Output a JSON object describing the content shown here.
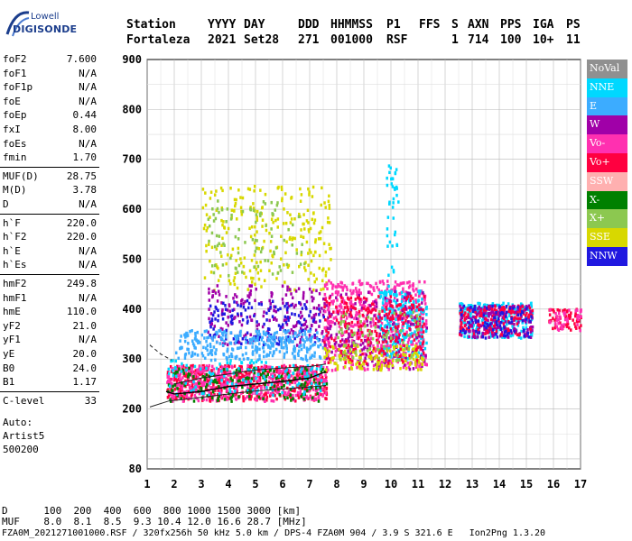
{
  "logo": {
    "brand": "Lowell",
    "product": "DIGISONDE"
  },
  "header": {
    "row1": [
      "Station",
      "YYYY",
      "DAY",
      "DDD",
      "HHMMSS",
      "P1",
      "FFS",
      "S",
      "AXN",
      "PPS",
      "IGA",
      "PS"
    ],
    "row2": [
      "Fortaleza",
      "2021",
      "Set28",
      "271",
      "001000",
      "RSF",
      "",
      "1",
      "714",
      "100",
      "10+",
      "11"
    ]
  },
  "params": {
    "group1": [
      {
        "k": "foF2",
        "v": "7.600"
      },
      {
        "k": "foF1",
        "v": "N/A"
      },
      {
        "k": "foF1p",
        "v": "N/A"
      },
      {
        "k": "foE",
        "v": "N/A"
      },
      {
        "k": "foEp",
        "v": "0.44"
      },
      {
        "k": "fxI",
        "v": "8.00"
      },
      {
        "k": "foEs",
        "v": "N/A"
      },
      {
        "k": "fmin",
        "v": "1.70"
      }
    ],
    "group2": [
      {
        "k": "MUF(D)",
        "v": "28.75"
      },
      {
        "k": "M(D)",
        "v": "3.78"
      },
      {
        "k": "D",
        "v": "N/A"
      }
    ],
    "group3": [
      {
        "k": "h`F",
        "v": "220.0"
      },
      {
        "k": "h`F2",
        "v": "220.0"
      },
      {
        "k": "h`E",
        "v": "N/A"
      },
      {
        "k": "h`Es",
        "v": "N/A"
      }
    ],
    "group4": [
      {
        "k": "hmF2",
        "v": "249.8"
      },
      {
        "k": "hmF1",
        "v": "N/A"
      },
      {
        "k": "hmE",
        "v": "110.0"
      },
      {
        "k": "yF2",
        "v": "21.0"
      },
      {
        "k": "yF1",
        "v": "N/A"
      },
      {
        "k": "yE",
        "v": "20.0"
      },
      {
        "k": "B0",
        "v": "24.0"
      },
      {
        "k": "B1",
        "v": "1.17"
      }
    ],
    "group5": [
      {
        "k": "C-level",
        "v": "33"
      }
    ],
    "auto": [
      "Auto:",
      "Artist5",
      "500200"
    ]
  },
  "legend": [
    {
      "label": "NoVal",
      "color": "#909090"
    },
    {
      "label": "NNE",
      "color": "#00d8ff"
    },
    {
      "label": "E",
      "color": "#3cacff"
    },
    {
      "label": "W",
      "color": "#a000a8"
    },
    {
      "label": "Vo-",
      "color": "#ff30b0"
    },
    {
      "label": "Vo+",
      "color": "#ff0040"
    },
    {
      "label": "SSW",
      "color": "#ffb0b0"
    },
    {
      "label": "X-",
      "color": "#008000"
    },
    {
      "label": "X+",
      "color": "#8cc850"
    },
    {
      "label": "SSE",
      "color": "#d8d800"
    },
    {
      "label": "NNW",
      "color": "#2018e0"
    }
  ],
  "footer": {
    "d_line": "D      100  200  400  600  800 1000 1500 3000 [km]",
    "muf_line": "MUF    8.0  8.1  8.5  9.3 10.4 12.0 16.6 28.7 [MHz]",
    "file_line": "FZA0M_2021271001000.RSF / 320fx256h 50 kHz 5.0 km / DPS-4 FZA0M 904 / 3.9 S 321.6 E   Ion2Png 1.3.20"
  },
  "chart_data": {
    "type": "scatter",
    "title": "",
    "xlabel": "",
    "ylabel": "",
    "xlim": [
      1,
      17
    ],
    "ylim": [
      80,
      900
    ],
    "x_ticks": [
      1,
      2,
      3,
      4,
      5,
      6,
      7,
      8,
      9,
      10,
      11,
      12,
      13,
      14,
      15,
      16,
      17
    ],
    "y_ticks": [
      80,
      200,
      300,
      400,
      500,
      600,
      700,
      800,
      900
    ],
    "grid": true,
    "legend_position": "right",
    "traces": {
      "o_trace": [
        [
          1.7,
          235
        ],
        [
          2.0,
          230
        ],
        [
          3.0,
          235
        ],
        [
          4.0,
          245
        ],
        [
          5.0,
          250
        ],
        [
          6.0,
          255
        ],
        [
          7.0,
          262
        ],
        [
          7.6,
          275
        ]
      ],
      "x_trace_upper": [
        [
          2.0,
          250
        ],
        [
          3.0,
          262
        ],
        [
          4.0,
          270
        ],
        [
          5.0,
          278
        ],
        [
          6.0,
          282
        ],
        [
          7.0,
          285
        ],
        [
          7.6,
          290
        ]
      ],
      "lower_solid": [
        [
          1.1,
          204
        ],
        [
          1.8,
          216
        ],
        [
          2.8,
          222
        ],
        [
          4.0,
          230
        ],
        [
          5.0,
          236
        ],
        [
          6.0,
          240
        ],
        [
          7.0,
          244
        ],
        [
          7.6,
          247
        ]
      ],
      "dashed": [
        [
          1.1,
          328
        ],
        [
          1.5,
          310
        ],
        [
          1.9,
          298
        ]
      ]
    },
    "clusters": [
      {
        "series": "SSE",
        "x": [
          3.0,
          7.8
        ],
        "y": [
          440,
          650
        ],
        "n": 260
      },
      {
        "series": "X+",
        "x": [
          3.2,
          6.8
        ],
        "y": [
          470,
          620
        ],
        "n": 90
      },
      {
        "series": "W",
        "x": [
          3.2,
          7.5
        ],
        "y": [
          330,
          450
        ],
        "n": 200
      },
      {
        "series": "NNW",
        "x": [
          3.2,
          7.5
        ],
        "y": [
          330,
          420
        ],
        "n": 140
      },
      {
        "series": "E",
        "x": [
          2.0,
          7.6
        ],
        "y": [
          300,
          360
        ],
        "n": 320
      },
      {
        "series": "Vo+",
        "x": [
          1.7,
          7.6
        ],
        "y": [
          218,
          290
        ],
        "n": 520
      },
      {
        "series": "Vo-",
        "x": [
          1.7,
          7.6
        ],
        "y": [
          218,
          290
        ],
        "n": 420
      },
      {
        "series": "X-",
        "x": [
          1.7,
          7.6
        ],
        "y": [
          218,
          285
        ],
        "n": 160
      },
      {
        "series": "NNE",
        "x": [
          1.7,
          7.6
        ],
        "y": [
          230,
          300
        ],
        "n": 120
      },
      {
        "series": "Vo-",
        "x": [
          7.5,
          11.3
        ],
        "y": [
          280,
          460
        ],
        "n": 520
      },
      {
        "series": "NNE",
        "x": [
          9.5,
          11.3
        ],
        "y": [
          300,
          440
        ],
        "n": 240
      },
      {
        "series": "W",
        "x": [
          7.5,
          11.3
        ],
        "y": [
          280,
          440
        ],
        "n": 200
      },
      {
        "series": "SSE",
        "x": [
          7.5,
          11.2
        ],
        "y": [
          280,
          330
        ],
        "n": 140
      },
      {
        "series": "Vo+",
        "x": [
          7.5,
          11.2
        ],
        "y": [
          290,
          430
        ],
        "n": 240
      },
      {
        "series": "X+",
        "x": [
          8.0,
          11.0
        ],
        "y": [
          300,
          400
        ],
        "n": 80
      },
      {
        "series": "NNE",
        "x": [
          9.8,
          10.3
        ],
        "y": [
          430,
          690
        ],
        "n": 40
      },
      {
        "series": "NNE",
        "x": [
          12.5,
          15.2
        ],
        "y": [
          345,
          415
        ],
        "n": 260
      },
      {
        "series": "W",
        "x": [
          12.5,
          15.2
        ],
        "y": [
          345,
          410
        ],
        "n": 200
      },
      {
        "series": "Vo+",
        "x": [
          12.5,
          15.2
        ],
        "y": [
          350,
          410
        ],
        "n": 120
      },
      {
        "series": "NNW",
        "x": [
          12.5,
          15.2
        ],
        "y": [
          345,
          410
        ],
        "n": 80
      },
      {
        "series": "Vo+",
        "x": [
          15.8,
          17.0
        ],
        "y": [
          360,
          405
        ],
        "n": 60
      },
      {
        "series": "Vo-",
        "x": [
          15.8,
          17.0
        ],
        "y": [
          360,
          405
        ],
        "n": 40
      }
    ]
  }
}
